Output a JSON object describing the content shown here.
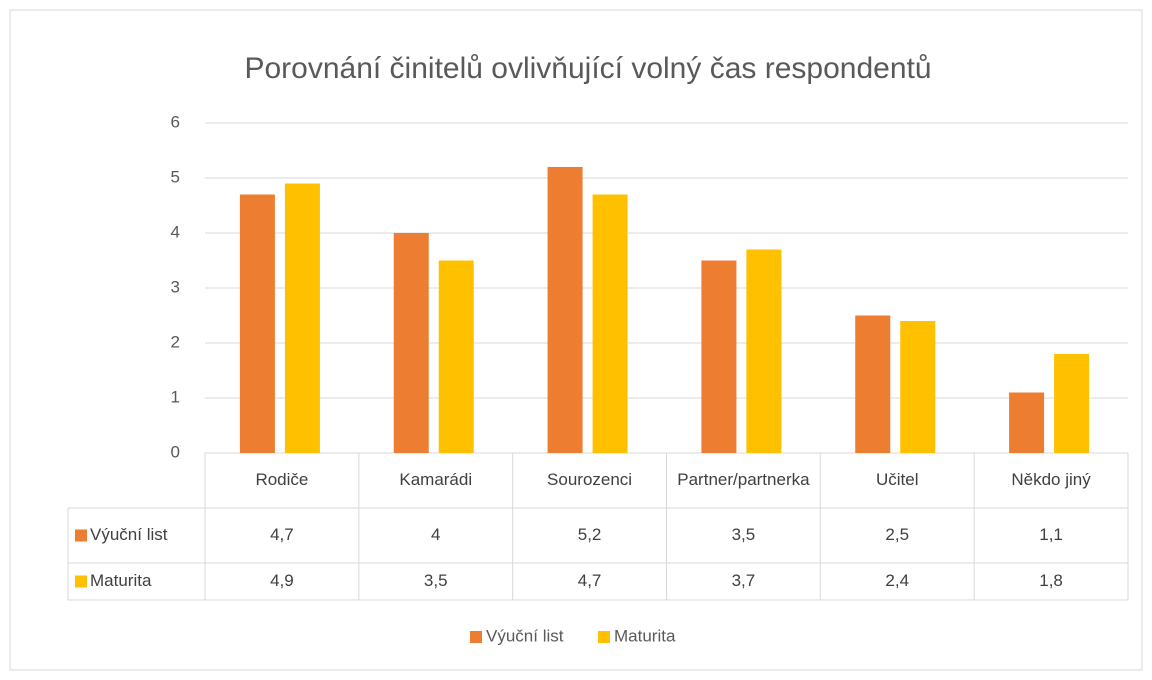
{
  "chart_data": {
    "type": "bar",
    "title": "Porovnání činitelů ovlivňující volný čas respondentů",
    "categories": [
      "Rodiče",
      "Kamarádi",
      "Sourozenci",
      "Partner/partnerka",
      "Učitel",
      "Někdo jiný"
    ],
    "series": [
      {
        "name": "Výuční list",
        "color": "#ed7d31",
        "values": [
          4.7,
          4,
          5.2,
          3.5,
          2.5,
          1.1
        ],
        "value_labels": [
          "4,7",
          "4",
          "5,2",
          "3,5",
          "2,5",
          "1,1"
        ]
      },
      {
        "name": "Maturita",
        "color": "#ffc000",
        "values": [
          4.9,
          3.5,
          4.7,
          3.7,
          2.4,
          1.8
        ],
        "value_labels": [
          "4,9",
          "3,5",
          "4,7",
          "3,7",
          "2,4",
          "1,8"
        ]
      }
    ],
    "ylim": [
      0,
      6
    ],
    "yticks": [
      0,
      1,
      2,
      3,
      4,
      5,
      6
    ],
    "grid": true,
    "legend": "bottom"
  }
}
